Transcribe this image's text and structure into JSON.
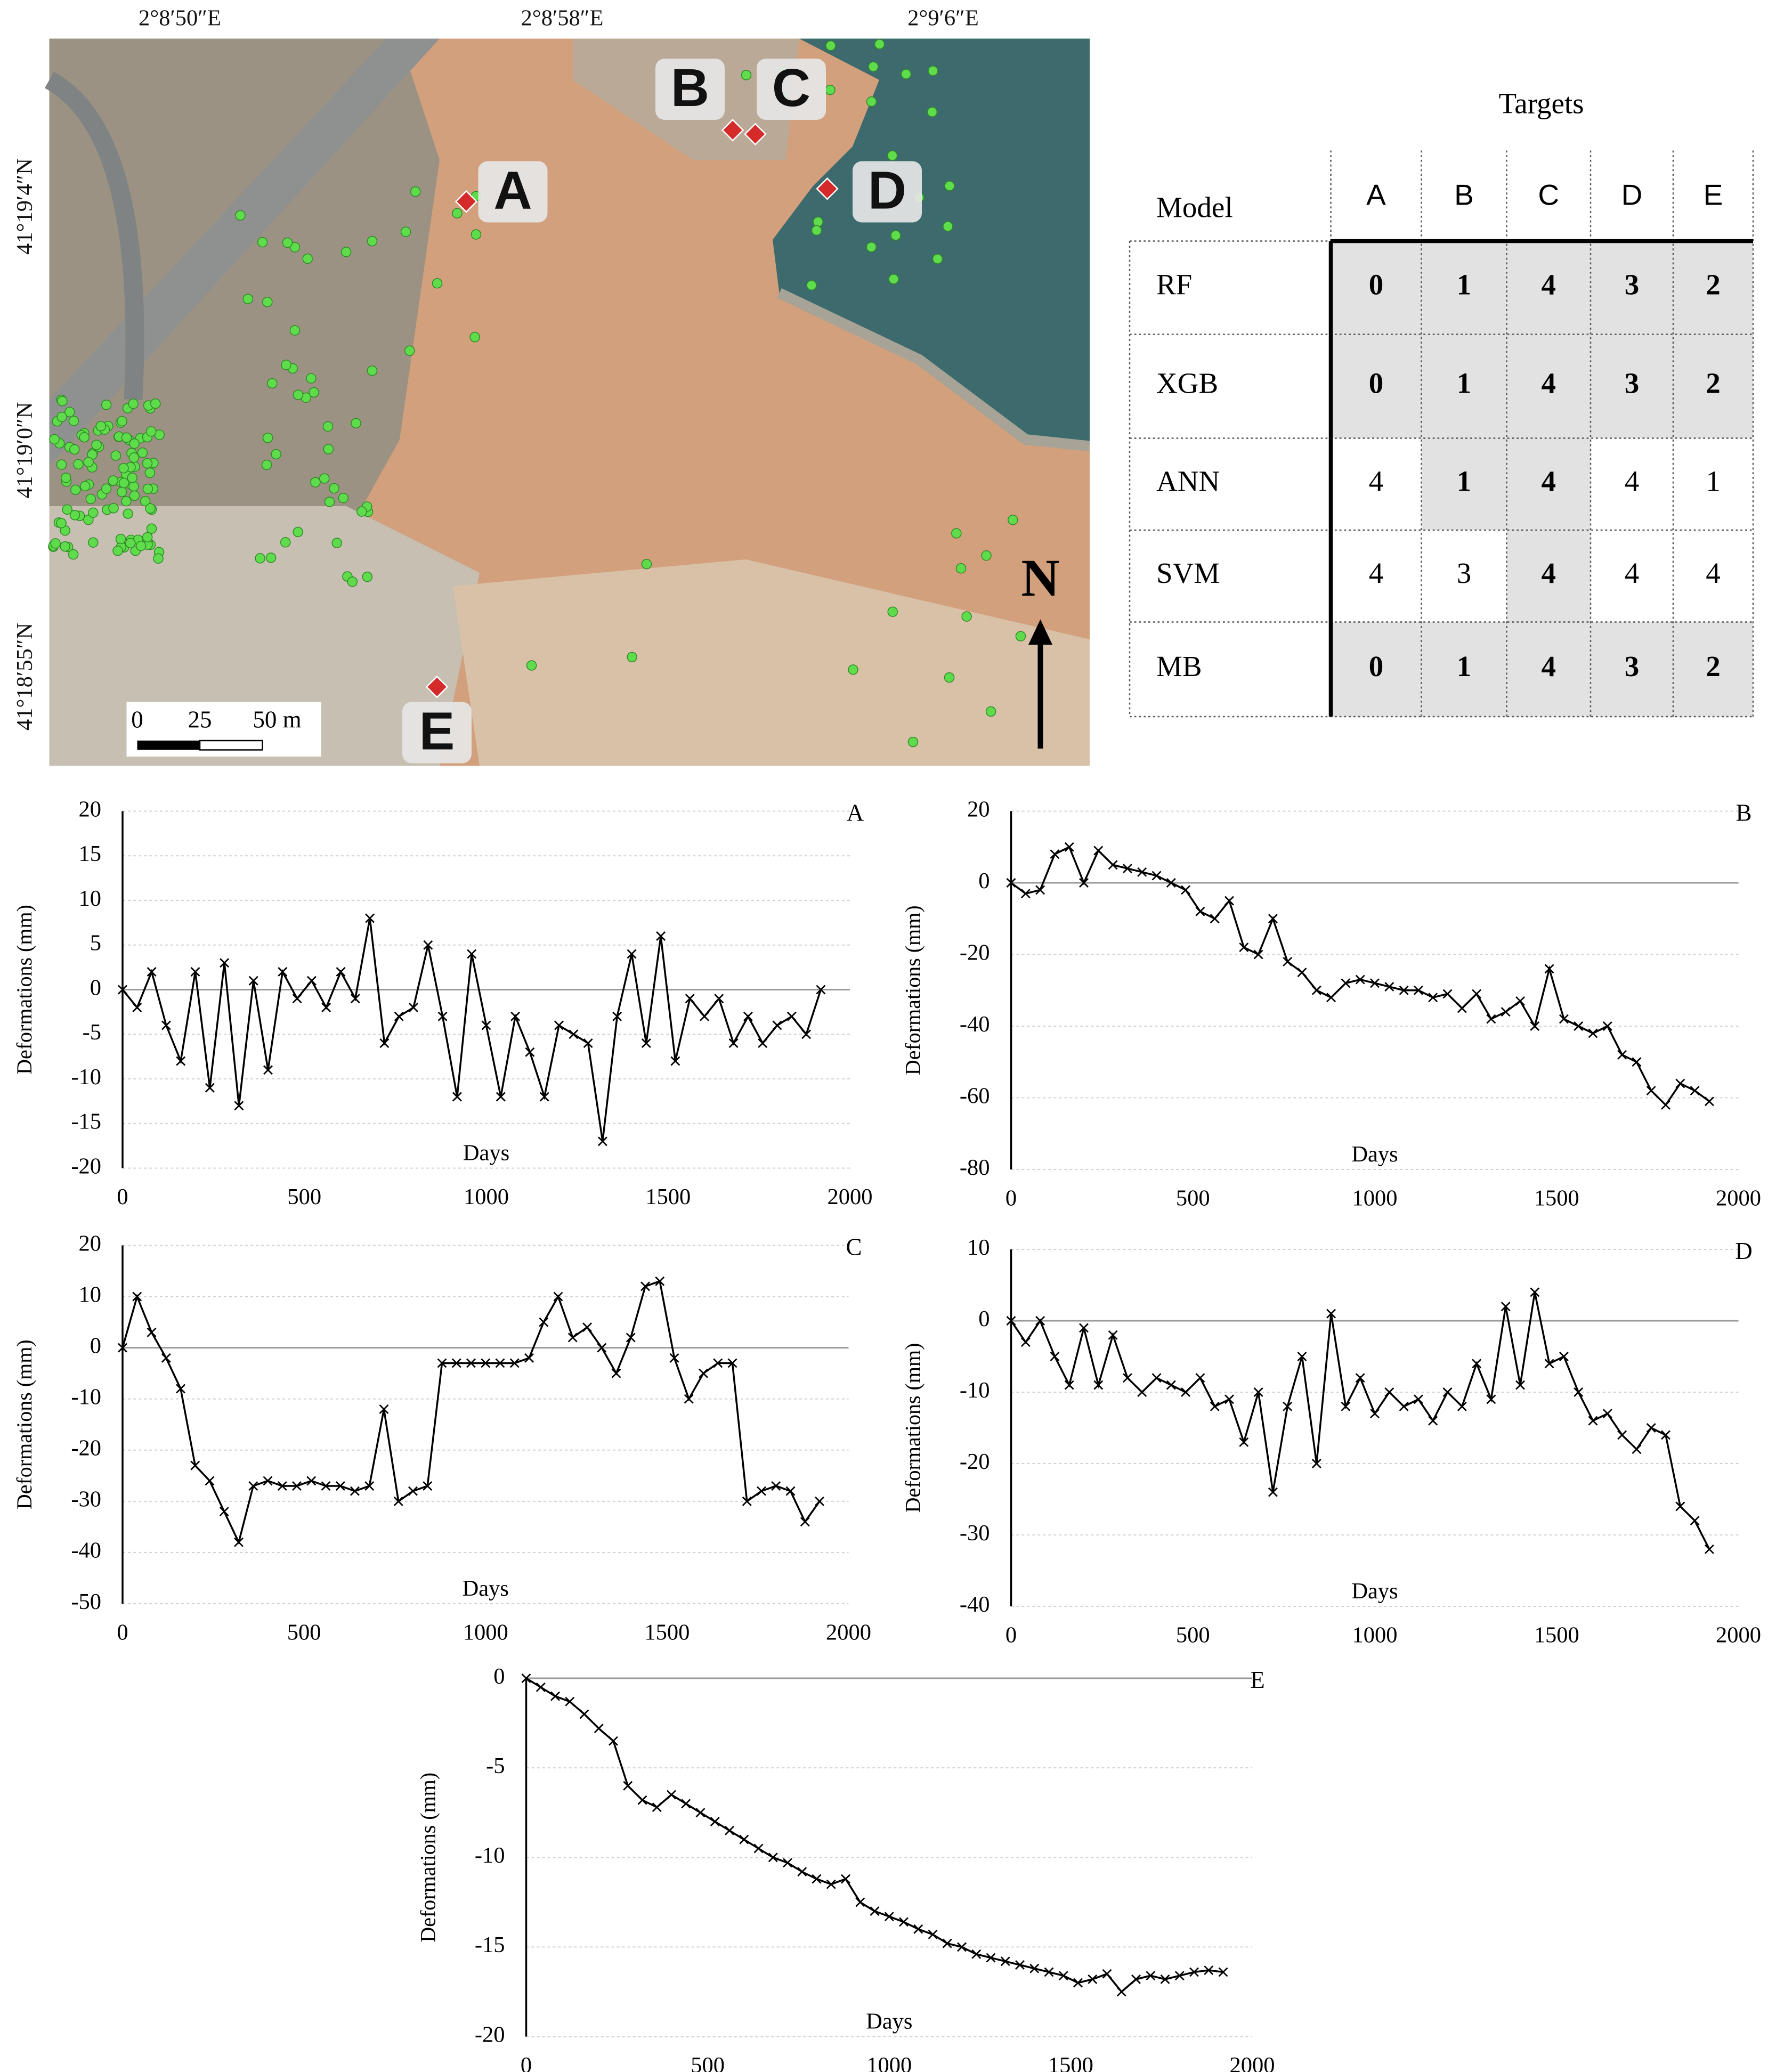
{
  "map": {
    "x_labels": [
      "2°8′50″E",
      "2°8′58″E",
      "2°9′6″E"
    ],
    "y_labels": [
      "41°19′4″N",
      "41°19′0″N",
      "41°18′55″N"
    ],
    "targets": [
      "A",
      "B",
      "C",
      "D",
      "E"
    ],
    "scale_labels": [
      "0",
      "25",
      "50 m"
    ],
    "north": "N"
  },
  "table": {
    "title": "Targets",
    "header": [
      "Model",
      "A",
      "B",
      "C",
      "D",
      "E"
    ],
    "rows": [
      [
        "RF",
        0,
        1,
        4,
        3,
        2
      ],
      [
        "XGB",
        0,
        1,
        4,
        3,
        2
      ],
      [
        "ANN",
        4,
        1,
        4,
        4,
        1
      ],
      [
        "SVM",
        4,
        3,
        4,
        4,
        4
      ],
      [
        "MB",
        0,
        1,
        4,
        3,
        2
      ]
    ],
    "highlight": [
      [
        true,
        true,
        true,
        true,
        true
      ],
      [
        true,
        true,
        true,
        true,
        true
      ],
      [
        false,
        true,
        true,
        false,
        false
      ],
      [
        false,
        false,
        true,
        false,
        false
      ],
      [
        true,
        true,
        true,
        true,
        true
      ]
    ]
  },
  "chart_data": [
    {
      "type": "line",
      "title": "A",
      "xlabel": "Days",
      "ylabel": "Deformations (mm)",
      "color": "#000000",
      "marker": "x",
      "grid": true,
      "x": [
        0,
        40,
        80,
        120,
        160,
        200,
        240,
        280,
        320,
        360,
        400,
        440,
        480,
        520,
        560,
        600,
        640,
        680,
        720,
        760,
        800,
        840,
        880,
        920,
        960,
        1000,
        1040,
        1080,
        1120,
        1160,
        1200,
        1240,
        1280,
        1320,
        1360,
        1400,
        1440,
        1480,
        1520,
        1560,
        1600,
        1640,
        1680,
        1720,
        1760,
        1800,
        1840,
        1880,
        1920
      ],
      "values": [
        0,
        -2,
        2,
        -4,
        -8,
        2,
        -11,
        3,
        -13,
        1,
        -9,
        2,
        -1,
        1,
        -2,
        2,
        -1,
        8,
        -6,
        -3,
        -2,
        5,
        -3,
        -12,
        4,
        -4,
        -12,
        -3,
        -7,
        -12,
        -4,
        -5,
        -6,
        -17,
        -3,
        4,
        -6,
        6,
        -8,
        -1,
        -3,
        -1,
        -6,
        -3,
        -6,
        -4,
        -3,
        -5,
        0
      ],
      "xlim": [
        0,
        2000
      ],
      "xticks": [
        0,
        500,
        1000,
        1500,
        2000
      ],
      "ylim": [
        -20,
        20
      ],
      "yticks": [
        20,
        15,
        10,
        5,
        0,
        -5,
        -10,
        -15,
        -20
      ]
    },
    {
      "type": "line",
      "title": "B",
      "xlabel": "Days",
      "ylabel": "Deformations (mm)",
      "color": "#000000",
      "marker": "x",
      "grid": true,
      "x": [
        0,
        40,
        80,
        120,
        160,
        200,
        240,
        280,
        320,
        360,
        400,
        440,
        480,
        520,
        560,
        600,
        640,
        680,
        720,
        760,
        800,
        840,
        880,
        920,
        960,
        1000,
        1040,
        1080,
        1120,
        1160,
        1200,
        1240,
        1280,
        1320,
        1360,
        1400,
        1440,
        1480,
        1520,
        1560,
        1600,
        1640,
        1680,
        1720,
        1760,
        1800,
        1840,
        1880,
        1920
      ],
      "values": [
        0,
        -3,
        -2,
        8,
        10,
        0,
        9,
        5,
        4,
        3,
        2,
        0,
        -2,
        -8,
        -10,
        -5,
        -18,
        -20,
        -10,
        -22,
        -25,
        -30,
        -32,
        -28,
        -27,
        -28,
        -29,
        -30,
        -30,
        -32,
        -31,
        -35,
        -31,
        -38,
        -36,
        -33,
        -40,
        -24,
        -38,
        -40,
        -42,
        -40,
        -48,
        -50,
        -58,
        -62,
        -56,
        -58,
        -61
      ],
      "xlim": [
        0,
        2000
      ],
      "xticks": [
        0,
        500,
        1000,
        1500,
        2000
      ],
      "ylim": [
        -80,
        20
      ],
      "yticks": [
        20,
        0,
        -20,
        -40,
        -60,
        -80
      ]
    },
    {
      "type": "line",
      "title": "C",
      "xlabel": "Days",
      "ylabel": "Deformations (mm)",
      "color": "#000000",
      "marker": "x",
      "grid": true,
      "x": [
        0,
        40,
        80,
        120,
        160,
        200,
        240,
        280,
        320,
        360,
        400,
        440,
        480,
        520,
        560,
        600,
        640,
        680,
        720,
        760,
        800,
        840,
        880,
        920,
        960,
        1000,
        1040,
        1080,
        1120,
        1160,
        1200,
        1240,
        1280,
        1320,
        1360,
        1400,
        1440,
        1480,
        1520,
        1560,
        1600,
        1640,
        1680,
        1720,
        1760,
        1800,
        1840,
        1880,
        1920
      ],
      "values": [
        0,
        10,
        3,
        -2,
        -8,
        -23,
        -26,
        -32,
        -38,
        -27,
        -26,
        -27,
        -27,
        -26,
        -27,
        -27,
        -28,
        -27,
        -12,
        -30,
        -28,
        -27,
        -3,
        -3,
        -3,
        -3,
        -3,
        -3,
        -2,
        5,
        10,
        2,
        4,
        0,
        -5,
        2,
        12,
        13,
        -2,
        -10,
        -5,
        -3,
        -3,
        -30,
        -28,
        -27,
        -28,
        -34,
        -30
      ],
      "xlim": [
        0,
        2000
      ],
      "xticks": [
        0,
        500,
        1000,
        1500,
        2000
      ],
      "ylim": [
        -50,
        20
      ],
      "yticks": [
        20,
        10,
        0,
        -10,
        -20,
        -30,
        -40,
        -50
      ]
    },
    {
      "type": "line",
      "title": "D",
      "xlabel": "Days",
      "ylabel": "Deformations (mm)",
      "color": "#000000",
      "marker": "x",
      "grid": true,
      "x": [
        0,
        40,
        80,
        120,
        160,
        200,
        240,
        280,
        320,
        360,
        400,
        440,
        480,
        520,
        560,
        600,
        640,
        680,
        720,
        760,
        800,
        840,
        880,
        920,
        960,
        1000,
        1040,
        1080,
        1120,
        1160,
        1200,
        1240,
        1280,
        1320,
        1360,
        1400,
        1440,
        1480,
        1520,
        1560,
        1600,
        1640,
        1680,
        1720,
        1760,
        1800,
        1840,
        1880,
        1920
      ],
      "values": [
        0,
        -3,
        0,
        -5,
        -9,
        -1,
        -9,
        -2,
        -8,
        -10,
        -8,
        -9,
        -10,
        -8,
        -12,
        -11,
        -17,
        -10,
        -24,
        -12,
        -5,
        -20,
        1,
        -12,
        -8,
        -13,
        -10,
        -12,
        -11,
        -14,
        -10,
        -12,
        -6,
        -11,
        2,
        -9,
        4,
        -6,
        -5,
        -10,
        -14,
        -13,
        -16,
        -18,
        -15,
        -16,
        -26,
        -28,
        -32
      ],
      "xlim": [
        0,
        2000
      ],
      "xticks": [
        0,
        500,
        1000,
        1500,
        2000
      ],
      "ylim": [
        -40,
        10
      ],
      "yticks": [
        10,
        0,
        -10,
        -20,
        -30,
        -40
      ]
    },
    {
      "type": "line",
      "title": "E",
      "xlabel": "Days",
      "ylabel": "Deformations (mm)",
      "color": "#000000",
      "marker": "x",
      "grid": true,
      "x": [
        0,
        40,
        80,
        120,
        160,
        200,
        240,
        280,
        320,
        360,
        400,
        440,
        480,
        520,
        560,
        600,
        640,
        680,
        720,
        760,
        800,
        840,
        880,
        920,
        960,
        1000,
        1040,
        1080,
        1120,
        1160,
        1200,
        1240,
        1280,
        1320,
        1360,
        1400,
        1440,
        1480,
        1520,
        1560,
        1600,
        1640,
        1680,
        1720,
        1760,
        1800,
        1840,
        1880,
        1920
      ],
      "values": [
        0,
        -0.5,
        -1,
        -1.3,
        -2,
        -2.8,
        -3.5,
        -6,
        -6.8,
        -7.2,
        -6.5,
        -7,
        -7.5,
        -8,
        -8.5,
        -9,
        -9.5,
        -10,
        -10.3,
        -10.8,
        -11.2,
        -11.5,
        -11.2,
        -12.5,
        -13,
        -13.3,
        -13.6,
        -14,
        -14.3,
        -14.8,
        -15,
        -15.4,
        -15.6,
        -15.8,
        -16,
        -16.2,
        -16.4,
        -16.6,
        -17,
        -16.8,
        -16.5,
        -17.5,
        -16.8,
        -16.6,
        -16.8,
        -16.6,
        -16.4,
        -16.3,
        -16.4
      ],
      "xlim": [
        0,
        2000
      ],
      "xticks": [
        0,
        500,
        1000,
        1500,
        2000
      ],
      "ylim": [
        -20,
        0
      ],
      "yticks": [
        0,
        -5,
        -10,
        -15,
        -20
      ]
    }
  ]
}
